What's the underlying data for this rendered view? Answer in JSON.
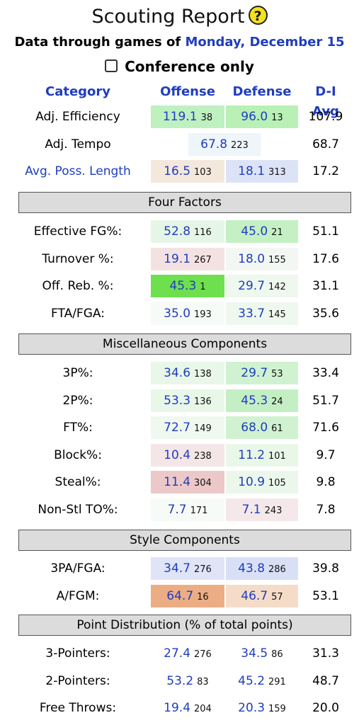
{
  "title": "Scouting Report",
  "help_icon": "?",
  "subtitle_prefix": "Data through games of",
  "date": "Monday, December 15",
  "conference_only_label": "Conference only",
  "headers": {
    "category": "Category",
    "offense": "Offense",
    "defense": "Defense",
    "avg": "D-I Avg"
  },
  "summary": [
    {
      "category": "Adj. Efficiency",
      "off": "119.1",
      "off_rank": "38",
      "def": "96.0",
      "def_rank": "13",
      "avg": "107.9",
      "off_bg": "#bff0c0",
      "def_bg": "#b8f0b6"
    },
    {
      "category": "Adj. Tempo",
      "single": "67.8",
      "single_rank": "223",
      "avg": "68.7",
      "single_bg": "#eef5fb"
    },
    {
      "category": "Avg. Poss. Length",
      "link": true,
      "off": "16.5",
      "off_rank": "103",
      "def": "18.1",
      "def_rank": "313",
      "avg": "17.2",
      "off_bg": "#f4e8dc",
      "def_bg": "#dde3f6"
    }
  ],
  "four_factors": {
    "title": "Four Factors",
    "rows": [
      {
        "category": "Effective FG%:",
        "off": "52.8",
        "off_rank": "116",
        "def": "45.0",
        "def_rank": "21",
        "avg": "51.1",
        "off_bg": "#e6f6e6",
        "def_bg": "#c4f0c4"
      },
      {
        "category": "Turnover %:",
        "off": "19.1",
        "off_rank": "267",
        "def": "18.0",
        "def_rank": "155",
        "avg": "17.6",
        "off_bg": "#f4e2e2",
        "def_bg": "#f3f7f3"
      },
      {
        "category": "Off. Reb. %:",
        "off": "45.3",
        "off_rank": "1",
        "def": "29.7",
        "def_rank": "142",
        "avg": "31.1",
        "off_bg": "#6ee04e",
        "def_bg": "#eef8ee"
      },
      {
        "category": "FTA/FGA:",
        "off": "35.0",
        "off_rank": "193",
        "def": "33.7",
        "def_rank": "145",
        "avg": "35.6",
        "off_bg": "#f7fbf7",
        "def_bg": "#eef8ee"
      }
    ]
  },
  "misc": {
    "title": "Miscellaneous Components",
    "rows": [
      {
        "category": "3P%:",
        "off": "34.6",
        "off_rank": "138",
        "def": "29.7",
        "def_rank": "53",
        "avg": "33.4",
        "off_bg": "#e8f7e8",
        "def_bg": "#d0f2d0"
      },
      {
        "category": "2P%:",
        "off": "53.3",
        "off_rank": "136",
        "def": "45.3",
        "def_rank": "24",
        "avg": "51.7",
        "off_bg": "#e8f7e8",
        "def_bg": "#c4efc4"
      },
      {
        "category": "FT%:",
        "off": "72.7",
        "off_rank": "149",
        "def": "68.0",
        "def_rank": "61",
        "avg": "71.6",
        "off_bg": "#eff9ef",
        "def_bg": "#d0f2d0"
      },
      {
        "category": "Block%:",
        "off": "10.4",
        "off_rank": "238",
        "def": "11.2",
        "def_rank": "101",
        "avg": "9.7",
        "off_bg": "#f4e6e6",
        "def_bg": "#e8f7e8"
      },
      {
        "category": "Steal%:",
        "off": "11.4",
        "off_rank": "304",
        "def": "10.9",
        "def_rank": "105",
        "avg": "9.8",
        "off_bg": "#ecc8c8",
        "def_bg": "#eaf7ea"
      },
      {
        "category": "Non-Stl TO%:",
        "off": "7.7",
        "off_rank": "171",
        "def": "7.1",
        "def_rank": "243",
        "avg": "7.8",
        "off_bg": "#f7fbf7",
        "def_bg": "#f4e8ea"
      }
    ]
  },
  "style": {
    "title": "Style Components",
    "rows": [
      {
        "category": "3PA/FGA:",
        "off": "34.7",
        "off_rank": "276",
        "def": "43.8",
        "def_rank": "286",
        "avg": "39.8",
        "off_bg": "#dfe4f7",
        "def_bg": "#d9e0f6"
      },
      {
        "category": "A/FGM:",
        "off": "64.7",
        "off_rank": "16",
        "def": "46.7",
        "def_rank": "57",
        "avg": "53.1",
        "off_bg": "#ecad85",
        "def_bg": "#f4dcc8"
      }
    ]
  },
  "point_dist": {
    "title": "Point Distribution (% of total points)",
    "rows": [
      {
        "category": "3-Pointers:",
        "off": "27.4",
        "off_rank": "276",
        "def": "34.5",
        "def_rank": "86",
        "avg": "31.3"
      },
      {
        "category": "2-Pointers:",
        "off": "53.2",
        "off_rank": "83",
        "def": "45.2",
        "def_rank": "291",
        "avg": "48.7"
      },
      {
        "category": "Free Throws:",
        "off": "19.4",
        "off_rank": "204",
        "def": "20.3",
        "def_rank": "159",
        "avg": "20.0"
      }
    ]
  }
}
